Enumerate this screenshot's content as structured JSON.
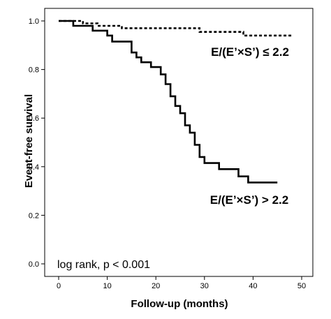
{
  "chart_data": {
    "type": "line",
    "subtype": "kaplan-meier step",
    "xlabel": "Follow-up (months)",
    "ylabel": "Event-free survival",
    "xlim": [
      0,
      50
    ],
    "ylim": [
      0.0,
      1.0
    ],
    "x_ticks": [
      0,
      10,
      20,
      30,
      40,
      50
    ],
    "y_ticks": [
      0.0,
      0.2,
      0.4,
      0.6,
      0.8,
      1.0
    ],
    "x_tick_labels": [
      "0",
      "10",
      "20",
      "30",
      "40",
      "50"
    ],
    "y_tick_labels": [
      "0.0",
      "0.2",
      "0.4",
      "0.6",
      "0.8",
      "1.0"
    ],
    "grid": false,
    "annotation": "log rank, p < 0.001",
    "series": [
      {
        "name": "E/(E’×S’) ≤ 2.2",
        "style": "dashed",
        "color": "#000000",
        "points": [
          [
            0,
            1.0
          ],
          [
            5,
            1.0
          ],
          [
            5,
            0.99
          ],
          [
            8,
            0.99
          ],
          [
            8,
            0.98
          ],
          [
            13,
            0.98
          ],
          [
            13,
            0.97
          ],
          [
            29,
            0.97
          ],
          [
            29,
            0.955
          ],
          [
            38,
            0.955
          ],
          [
            38,
            0.94
          ],
          [
            48,
            0.94
          ]
        ]
      },
      {
        "name": "E/(E’×S’) > 2.2",
        "style": "solid",
        "color": "#000000",
        "points": [
          [
            0,
            1.0
          ],
          [
            3,
            1.0
          ],
          [
            3,
            0.98
          ],
          [
            7,
            0.98
          ],
          [
            7,
            0.96
          ],
          [
            10,
            0.96
          ],
          [
            10,
            0.94
          ],
          [
            11,
            0.94
          ],
          [
            11,
            0.915
          ],
          [
            15,
            0.915
          ],
          [
            15,
            0.87
          ],
          [
            16,
            0.87
          ],
          [
            16,
            0.85
          ],
          [
            17,
            0.85
          ],
          [
            17,
            0.83
          ],
          [
            19,
            0.83
          ],
          [
            19,
            0.81
          ],
          [
            21,
            0.81
          ],
          [
            21,
            0.78
          ],
          [
            22,
            0.78
          ],
          [
            22,
            0.74
          ],
          [
            23,
            0.74
          ],
          [
            23,
            0.69
          ],
          [
            24,
            0.69
          ],
          [
            24,
            0.65
          ],
          [
            25,
            0.65
          ],
          [
            25,
            0.62
          ],
          [
            26,
            0.62
          ],
          [
            26,
            0.57
          ],
          [
            27,
            0.57
          ],
          [
            27,
            0.54
          ],
          [
            28,
            0.54
          ],
          [
            28,
            0.49
          ],
          [
            29,
            0.49
          ],
          [
            29,
            0.44
          ],
          [
            30,
            0.44
          ],
          [
            30,
            0.415
          ],
          [
            33,
            0.415
          ],
          [
            33,
            0.39
          ],
          [
            37,
            0.39
          ],
          [
            37,
            0.36
          ],
          [
            39,
            0.36
          ],
          [
            39,
            0.335
          ],
          [
            45,
            0.335
          ]
        ]
      }
    ]
  }
}
